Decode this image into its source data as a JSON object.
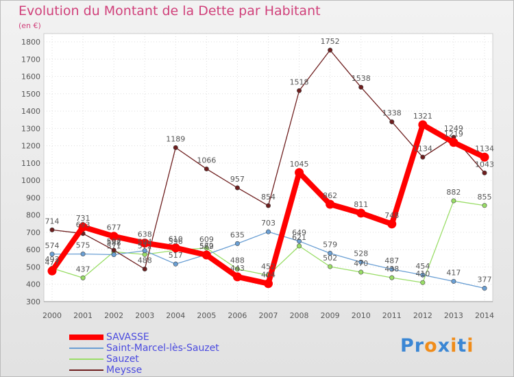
{
  "chart_data": {
    "type": "line",
    "title": "Evolution du Montant de la Dette par Habitant",
    "subtitle": "(en €)",
    "categories": [
      "2000",
      "2001",
      "2002",
      "2003",
      "2004",
      "2005",
      "2006",
      "2007",
      "2008",
      "2009",
      "2010",
      "2011",
      "2012",
      "2013",
      "2014"
    ],
    "ylim": [
      300,
      1800
    ],
    "yticks": [
      300,
      400,
      500,
      600,
      700,
      800,
      900,
      1000,
      1100,
      1200,
      1300,
      1400,
      1500,
      1600,
      1700,
      1800
    ],
    "grid": true,
    "legend_position": "bottom-left",
    "series": [
      {
        "name": "SAVASSE",
        "color": "#ff0000",
        "values": [
          477,
          731,
          677,
          638,
          610,
          569,
          443,
          404,
          1045,
          862,
          811,
          748,
          1321,
          1219,
          1134
        ]
      },
      {
        "name": "Saint-Marcel-lès-Sauzet",
        "color": "#6a9fd4",
        "values": [
          574,
          575,
          571,
          594,
          517,
          572,
          635,
          703,
          649,
          579,
          528,
          487,
          454,
          417,
          377
        ]
      },
      {
        "name": "Sauzet",
        "color": "#99dd66",
        "values": [
          493,
          437,
          588,
          572,
          596,
          609,
          488,
          452,
          621,
          502,
          470,
          438,
          410,
          882,
          855
        ]
      },
      {
        "name": "Meysse",
        "color": "#6e1e1e",
        "values": [
          714,
          693,
          597,
          488,
          1189,
          1066,
          957,
          854,
          1518,
          1752,
          1538,
          1338,
          1134,
          1249,
          1043
        ]
      }
    ]
  },
  "logo": {
    "letters": [
      "P",
      "r",
      "o",
      "x",
      "i",
      "t",
      "i"
    ],
    "colors": [
      "#3a86d4",
      "#3a86d4",
      "#f08c1a",
      "#3a86d4",
      "#f08c1a",
      "#3a86d4",
      "#f08c1a"
    ]
  }
}
